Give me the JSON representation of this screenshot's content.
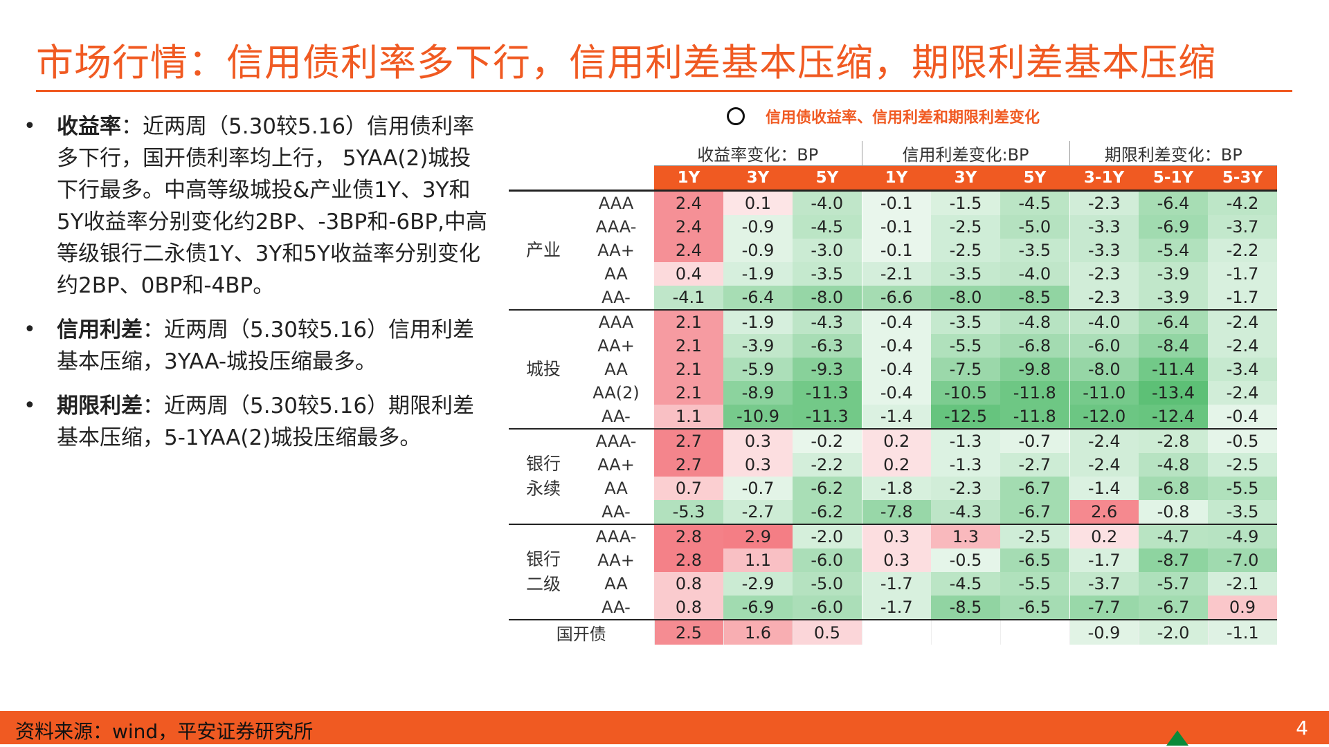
{
  "title": "市场行情：信用债利率多下行，信用利差基本压缩，期限利差基本压缩",
  "bullets": [
    {
      "label": "收益率",
      "text": "：近两周（5.30较5.16）信用债利率多下行，国开债利率均上行， 5YAA(2)城投下行最多。中高等级城投&产业债1Y、3Y和5Y收益率分别变化约2BP、-3BP和-6BP,中高等级银行二永债1Y、3Y和5Y收益率分别变化约2BP、0BP和-4BP。"
    },
    {
      "label": "信用利差",
      "text": "：近两周（5.30较5.16）信用利差基本压缩，3YAA-城投压缩最多。"
    },
    {
      "label": "期限利差",
      "text": "：近两周（5.30较5.16）期限利差基本压缩，5-1YAA(2)城投压缩最多。"
    }
  ],
  "chart_caption": "信用债收益率、信用利差和期限利差变化",
  "table": {
    "group_headers": [
      "收益率变化：BP",
      "信用利差变化:BP",
      "期限利差变化：BP"
    ],
    "columns": [
      "1Y",
      "3Y",
      "5Y",
      "1Y",
      "3Y",
      "5Y",
      "3-1Y",
      "5-1Y",
      "5-3Y"
    ],
    "sections": [
      {
        "name": "产业",
        "rows": [
          {
            "rating": "AAA",
            "values": [
              2.4,
              0.1,
              -4.0,
              -0.1,
              -1.5,
              -4.5,
              -2.3,
              -6.4,
              -4.2
            ]
          },
          {
            "rating": "AAA-",
            "values": [
              2.4,
              -0.9,
              -4.5,
              -0.1,
              -2.5,
              -5.0,
              -3.3,
              -6.9,
              -3.7
            ]
          },
          {
            "rating": "AA+",
            "values": [
              2.4,
              -0.9,
              -3.0,
              -0.1,
              -2.5,
              -3.5,
              -3.3,
              -5.4,
              -2.2
            ]
          },
          {
            "rating": "AA",
            "values": [
              0.4,
              -1.9,
              -3.5,
              -2.1,
              -3.5,
              -4.0,
              -2.3,
              -3.9,
              -1.7
            ]
          },
          {
            "rating": "AA-",
            "values": [
              -4.1,
              -6.4,
              -8.0,
              -6.6,
              -8.0,
              -8.5,
              -2.3,
              -3.9,
              -1.7
            ]
          }
        ]
      },
      {
        "name": "城投",
        "rows": [
          {
            "rating": "AAA",
            "values": [
              2.1,
              -1.9,
              -4.3,
              -0.4,
              -3.5,
              -4.8,
              -4.0,
              -6.4,
              -2.4
            ]
          },
          {
            "rating": "AA+",
            "values": [
              2.1,
              -3.9,
              -6.3,
              -0.4,
              -5.5,
              -6.8,
              -6.0,
              -8.4,
              -2.4
            ]
          },
          {
            "rating": "AA",
            "values": [
              2.1,
              -5.9,
              -9.3,
              -0.4,
              -7.5,
              -9.8,
              -8.0,
              -11.4,
              -3.4
            ]
          },
          {
            "rating": "AA(2)",
            "values": [
              2.1,
              -8.9,
              -11.3,
              -0.4,
              -10.5,
              -11.8,
              -11.0,
              -13.4,
              -2.4
            ]
          },
          {
            "rating": "AA-",
            "values": [
              1.1,
              -10.9,
              -11.3,
              -1.4,
              -12.5,
              -11.8,
              -12.0,
              -12.4,
              -0.4
            ]
          }
        ]
      },
      {
        "name": "银行永续",
        "name_lines": [
          "银行",
          "永续"
        ],
        "rows": [
          {
            "rating": "AAA-",
            "values": [
              2.7,
              0.3,
              -0.2,
              0.2,
              -1.3,
              -0.7,
              -2.4,
              -2.8,
              -0.5
            ]
          },
          {
            "rating": "AA+",
            "values": [
              2.7,
              0.3,
              -2.2,
              0.2,
              -1.3,
              -2.7,
              -2.4,
              -4.8,
              -2.5
            ]
          },
          {
            "rating": "AA",
            "values": [
              0.7,
              -0.7,
              -6.2,
              -1.8,
              -2.3,
              -6.7,
              -1.4,
              -6.8,
              -5.5
            ]
          },
          {
            "rating": "AA-",
            "values": [
              -5.3,
              -2.7,
              -6.2,
              -7.8,
              -4.3,
              -6.7,
              2.6,
              -0.8,
              -3.5
            ]
          }
        ]
      },
      {
        "name": "银行二级",
        "name_lines": [
          "银行",
          "二级"
        ],
        "rows": [
          {
            "rating": "AAA-",
            "values": [
              2.8,
              2.9,
              -2.0,
              0.3,
              1.3,
              -2.5,
              0.2,
              -4.7,
              -4.9
            ]
          },
          {
            "rating": "AA+",
            "values": [
              2.8,
              1.1,
              -6.0,
              0.3,
              -0.5,
              -6.5,
              -1.7,
              -8.7,
              -7.0
            ]
          },
          {
            "rating": "AA",
            "values": [
              0.8,
              -2.9,
              -5.0,
              -1.7,
              -4.5,
              -5.5,
              -3.7,
              -5.7,
              -2.1
            ]
          },
          {
            "rating": "AA-",
            "values": [
              0.8,
              -6.9,
              -6.0,
              -1.7,
              -8.5,
              -6.5,
              -7.7,
              -6.7,
              0.9
            ]
          }
        ]
      }
    ],
    "cdb": {
      "name": "国开债",
      "values": [
        2.5,
        1.6,
        0.5,
        null,
        null,
        null,
        -0.9,
        -2.0,
        -1.1
      ]
    }
  },
  "colors": {
    "accent": "#f05a22",
    "positive": "#f26b73",
    "negative": "#4fbb6a",
    "logo": "#0a8a3a"
  },
  "icons": [
    "circle-icon",
    "logo-icon"
  ],
  "footer": {
    "source": "资料来源：wind，平安证券研究所",
    "page": "4"
  }
}
